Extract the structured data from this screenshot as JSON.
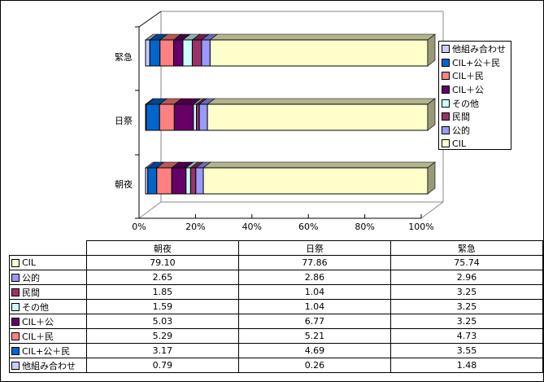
{
  "chart_data": {
    "type": "bar",
    "orientation": "horizontal",
    "stacked": "percent",
    "3d": true,
    "categories": [
      "朝夜",
      "日祭",
      "緊急"
    ],
    "series": [
      {
        "name": "他組み合わせ",
        "color": "#CCCCFF",
        "values": [
          0.79,
          0.26,
          1.48
        ]
      },
      {
        "name": "CIL+公＋民",
        "color": "#0066CC",
        "values": [
          3.17,
          4.69,
          3.55
        ]
      },
      {
        "name": "CIL＋民",
        "color": "#FF8080",
        "values": [
          5.29,
          5.21,
          4.73
        ]
      },
      {
        "name": "CIL＋公",
        "color": "#660066",
        "values": [
          5.03,
          6.77,
          3.25
        ]
      },
      {
        "name": "その他",
        "color": "#CCFFFF",
        "values": [
          1.59,
          1.04,
          3.25
        ]
      },
      {
        "name": "民間",
        "color": "#993366",
        "values": [
          1.85,
          1.04,
          3.25
        ]
      },
      {
        "name": "公的",
        "color": "#9999FF",
        "values": [
          2.65,
          2.86,
          2.96
        ]
      },
      {
        "name": "CIL",
        "color": "#FFFFCC",
        "values": [
          79.1,
          77.86,
          75.74
        ]
      }
    ],
    "table_rows": [
      {
        "name": "CIL",
        "values": [
          "79.10",
          "77.86",
          "75.74"
        ]
      },
      {
        "name": "公的",
        "values": [
          "2.65",
          "2.86",
          "2.96"
        ]
      },
      {
        "name": "民間",
        "values": [
          "1.85",
          "1.04",
          "3.25"
        ]
      },
      {
        "name": "その他",
        "values": [
          "1.59",
          "1.04",
          "3.25"
        ]
      },
      {
        "name": "CIL＋公",
        "values": [
          "5.03",
          "6.77",
          "3.25"
        ]
      },
      {
        "name": "CIL＋民",
        "values": [
          "5.29",
          "5.21",
          "4.73"
        ]
      },
      {
        "name": "CIL+公＋民",
        "values": [
          "3.17",
          "4.69",
          "3.55"
        ]
      },
      {
        "name": "他組み合わせ",
        "values": [
          "0.79",
          "0.26",
          "1.48"
        ]
      }
    ],
    "xticks": [
      "0%",
      "20%",
      "40%",
      "60%",
      "80%",
      "100%"
    ],
    "xlim": [
      0,
      100
    ],
    "legend": "right",
    "grid": false
  }
}
